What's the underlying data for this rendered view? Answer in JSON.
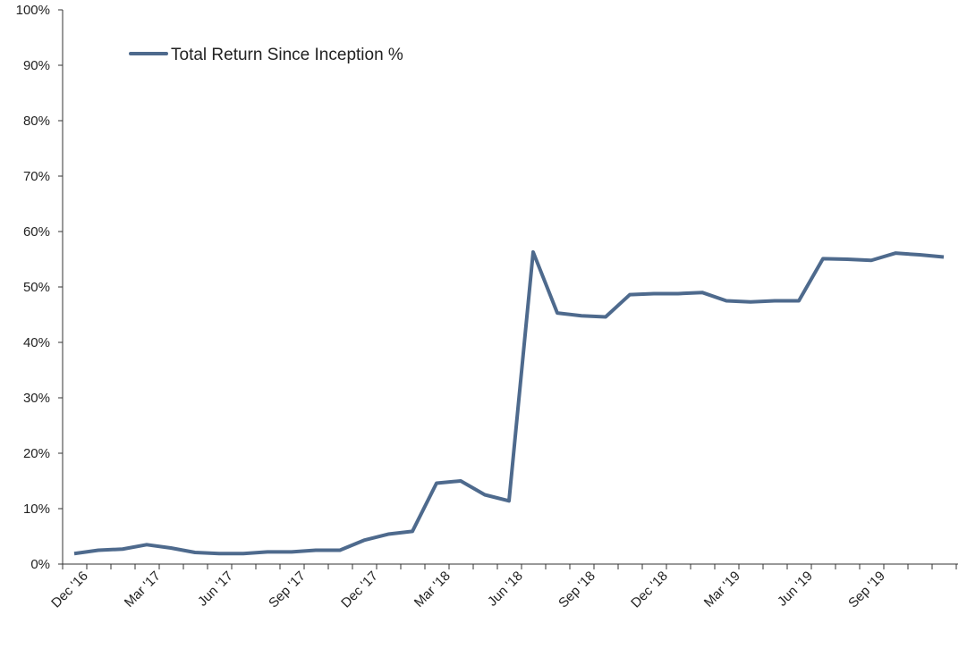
{
  "chart_data": {
    "type": "line",
    "categories": [
      "Dec '16",
      null,
      null,
      "Mar '17",
      null,
      null,
      "Jun '17",
      null,
      null,
      "Sep '17",
      null,
      null,
      "Dec '17",
      null,
      null,
      "Mar '18",
      null,
      null,
      "Jun '18",
      null,
      null,
      "Sep '18",
      null,
      null,
      "Dec '18",
      null,
      null,
      "Mar '19",
      null,
      null,
      "Jun '19",
      null,
      null,
      "Sep '19",
      null,
      null,
      null
    ],
    "series": [
      {
        "name": "Total Return Since Inception %",
        "color": "#4e6a8d",
        "values": [
          1.9,
          2.5,
          2.7,
          3.5,
          2.9,
          2.1,
          1.9,
          1.9,
          2.2,
          2.2,
          2.5,
          2.5,
          4.3,
          5.4,
          5.9,
          14.6,
          15.0,
          12.5,
          11.4,
          56.3,
          45.3,
          44.8,
          44.6,
          48.6,
          48.8,
          48.8,
          49.0,
          47.5,
          47.3,
          47.5,
          47.5,
          55.1,
          55.0,
          54.8,
          56.1,
          55.8,
          55.4
        ]
      }
    ],
    "ylim": [
      0,
      100
    ],
    "yticks": [
      {
        "value": 0,
        "label": "0%"
      },
      {
        "value": 10,
        "label": "10%"
      },
      {
        "value": 20,
        "label": "20%"
      },
      {
        "value": 30,
        "label": "30%"
      },
      {
        "value": 40,
        "label": "40%"
      },
      {
        "value": 50,
        "label": "50%"
      },
      {
        "value": 60,
        "label": "60%"
      },
      {
        "value": 70,
        "label": "70%"
      },
      {
        "value": 80,
        "label": "80%"
      },
      {
        "value": 90,
        "label": "90%"
      },
      {
        "value": 100,
        "label": "100%"
      }
    ],
    "legend": "upper left",
    "grid": false
  }
}
